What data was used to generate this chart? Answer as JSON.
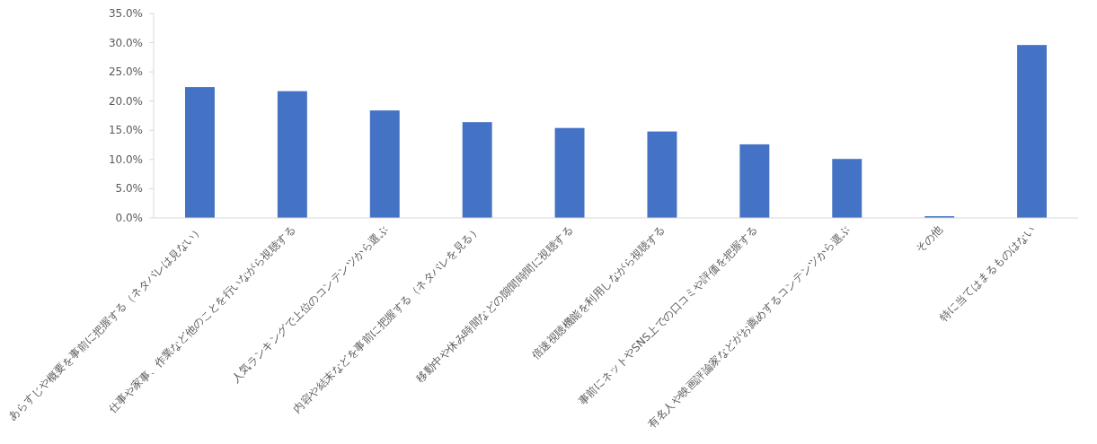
{
  "chart_data": {
    "type": "bar",
    "categories": [
      "あらすじや概要を事前に把握する（ネタバレは見ない）",
      "仕事や家事、作業など他のことを行いながら視聴する",
      "人気ランキングで上位のコンテンツから選ぶ",
      "内容や結末などを事前に把握する（ネタバレを見る）",
      "移動中や休み時間などの隙間時間に視聴する",
      "倍速視聴機能を利用しながら視聴する",
      "事前にネットやSNS上での口コミや評価を把握する",
      "有名人や映画評論家などがお薦めするコンテンツから選ぶ",
      "その他",
      "特に当てはまるものはない"
    ],
    "values": [
      22.4,
      21.7,
      18.4,
      16.4,
      15.4,
      14.8,
      12.6,
      10.1,
      0.3,
      29.6
    ],
    "color": "#4472c4",
    "ylim": [
      0,
      35
    ],
    "yticks": [
      {
        "value": 0,
        "label": "0.0%"
      },
      {
        "value": 5,
        "label": "5.0%"
      },
      {
        "value": 10,
        "label": "10.0%"
      },
      {
        "value": 15,
        "label": "15.0%"
      },
      {
        "value": 20,
        "label": "20.0%"
      },
      {
        "value": 25,
        "label": "25.0%"
      },
      {
        "value": 30,
        "label": "30.0%"
      },
      {
        "value": 35,
        "label": "35.0%"
      }
    ],
    "grid": false
  }
}
